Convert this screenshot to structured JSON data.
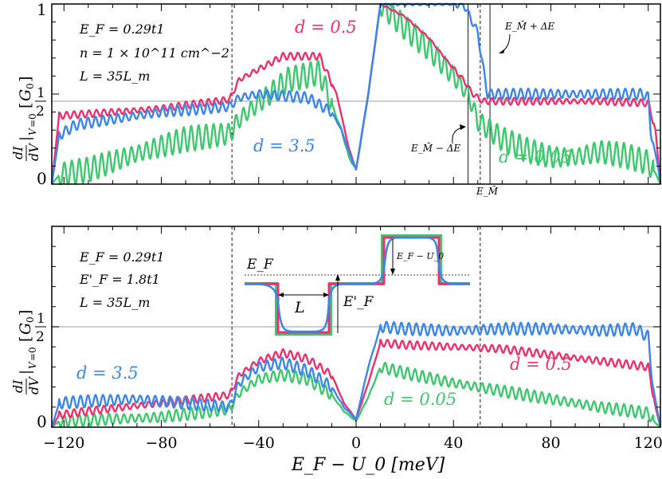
{
  "colors": {
    "d_0_5": "#f0306e",
    "d_3_5": "#3a86ea",
    "d_0_05": "#3cc86c",
    "guide": "#bdbdbd",
    "frame": "#000000"
  },
  "x_axis": {
    "label": "E_F − U_0 [meV]",
    "ticks": [
      -120,
      -80,
      -40,
      0,
      40,
      80,
      120
    ],
    "tick_labels": [
      "−120",
      "−80",
      "−40",
      "0",
      "40",
      "80",
      "120"
    ],
    "range": [
      -125,
      125
    ]
  },
  "y_axis": {
    "label": "dI/dV |V=0 [G0]",
    "tick_labels": [
      "0",
      "1/2",
      "1"
    ],
    "range": [
      0,
      1
    ]
  },
  "top_panel": {
    "params": [
      "E_F = 0.29t1",
      "n = 1 × 10^11 cm^−2",
      "L = 35L_m"
    ],
    "labels": {
      "d_0_5": "d = 0.5",
      "d_3_5": "d = 3.5",
      "d_0_05": "d = 0.05"
    },
    "annotations": {
      "e_m": "E_M̃",
      "e_m_plus": "E_M̃ + ΔE",
      "e_m_minus": "E_M̃ − ΔE"
    }
  },
  "bottom_panel": {
    "params": [
      "E_F = 0.29t1",
      "E'_F = 1.8t1",
      "L = 35L_m"
    ],
    "labels": {
      "d_0_5": "d = 0.5",
      "d_3_5": "d = 3.5",
      "d_0_05": "d = 0.05"
    },
    "inset": {
      "ef": "E_F",
      "efp": "E'_F",
      "l": "L",
      "ef_u0": "E_F − U_0"
    }
  },
  "chart_data": [
    {
      "type": "line",
      "panel": "top",
      "xlabel": "E_F − U_0 [meV]",
      "ylabel": "dI/dV |V=0 [G0]",
      "xlim": [
        -125,
        125
      ],
      "ylim": [
        0,
        1
      ],
      "vlines": [
        -51,
        46,
        51,
        55
      ],
      "series": [
        {
          "name": "d = 0.5",
          "x": [
            -125,
            -122,
            -110,
            -80,
            -52,
            -48,
            -30,
            -15,
            -8,
            -3,
            0,
            5,
            10,
            20,
            30,
            40,
            44,
            48,
            52,
            55,
            60,
            80,
            100,
            120,
            123,
            125
          ],
          "y": [
            0,
            0.38,
            0.39,
            0.42,
            0.47,
            0.58,
            0.71,
            0.71,
            0.5,
            0.2,
            0.08,
            0.5,
            1.0,
            0.93,
            0.81,
            0.64,
            0.58,
            0.5,
            0.46,
            0.46,
            0.46,
            0.46,
            0.46,
            0.45,
            0.3,
            0
          ],
          "osc": 0.02
        },
        {
          "name": "d = 3.5",
          "x": [
            -125,
            -122,
            -115,
            -100,
            -80,
            -52,
            -48,
            -40,
            -20,
            -10,
            -6,
            -3,
            0,
            5,
            10,
            30,
            44,
            46,
            50,
            52,
            54,
            56,
            60,
            80,
            100,
            118,
            120,
            121,
            124,
            125
          ],
          "y": [
            0,
            0.27,
            0.33,
            0.36,
            0.4,
            0.43,
            0.48,
            0.5,
            0.48,
            0.4,
            0.3,
            0.18,
            0.08,
            0.5,
            1.0,
            1.0,
            1.0,
            0.95,
            0.84,
            0.66,
            0.5,
            0.5,
            0.5,
            0.5,
            0.5,
            0.5,
            0.48,
            0.3,
            0.1,
            0
          ],
          "osc": 0.03
        },
        {
          "name": "d = 0.05",
          "x": [
            -125,
            -122,
            -110,
            -90,
            -70,
            -52,
            -48,
            -40,
            -28,
            -15,
            -6,
            -3,
            0,
            5,
            10,
            20,
            30,
            40,
            46,
            50,
            55,
            60,
            70,
            80,
            90,
            100,
            110,
            120,
            123,
            125
          ],
          "y": [
            0,
            0.05,
            0.08,
            0.17,
            0.25,
            0.28,
            0.36,
            0.45,
            0.58,
            0.62,
            0.3,
            0.15,
            0.08,
            0.5,
            1.0,
            0.87,
            0.75,
            0.6,
            0.5,
            0.35,
            0.3,
            0.25,
            0.19,
            0.15,
            0.15,
            0.18,
            0.16,
            0.12,
            0.06,
            0
          ],
          "osc": 0.07
        }
      ]
    },
    {
      "type": "line",
      "panel": "bottom",
      "xlabel": "E_F − U_0 [meV]",
      "ylabel": "dI/dV |V=0 [G0]",
      "xlim": [
        -125,
        125
      ],
      "ylim": [
        0,
        1
      ],
      "vlines": [
        -51,
        51
      ],
      "series": [
        {
          "name": "d = 0.5",
          "x": [
            -125,
            -122,
            -110,
            -80,
            -52,
            -48,
            -40,
            -30,
            -20,
            -10,
            -5,
            0,
            5,
            10,
            20,
            40,
            60,
            80,
            100,
            120,
            123,
            125
          ],
          "y": [
            0,
            0.06,
            0.08,
            0.12,
            0.16,
            0.26,
            0.33,
            0.37,
            0.34,
            0.26,
            0.12,
            0.04,
            0.22,
            0.42,
            0.41,
            0.4,
            0.39,
            0.36,
            0.33,
            0.3,
            0.1,
            0
          ],
          "osc": 0.02
        },
        {
          "name": "d = 3.5",
          "x": [
            -125,
            -122,
            -110,
            -90,
            -70,
            -52,
            -48,
            -40,
            -30,
            -20,
            -10,
            -5,
            0,
            5,
            10,
            20,
            40,
            60,
            80,
            100,
            115,
            120,
            122,
            125
          ],
          "y": [
            0,
            0.12,
            0.13,
            0.14,
            0.12,
            0.1,
            0.22,
            0.3,
            0.32,
            0.28,
            0.2,
            0.1,
            0.04,
            0.3,
            0.5,
            0.49,
            0.48,
            0.49,
            0.49,
            0.48,
            0.49,
            0.45,
            0.2,
            0
          ],
          "osc": 0.03
        },
        {
          "name": "d = 0.05",
          "x": [
            -125,
            -122,
            -100,
            -80,
            -52,
            -48,
            -40,
            -30,
            -20,
            -10,
            -5,
            0,
            5,
            10,
            20,
            40,
            60,
            80,
            100,
            120,
            123,
            125
          ],
          "y": [
            0,
            0.03,
            0.04,
            0.05,
            0.09,
            0.17,
            0.24,
            0.26,
            0.24,
            0.16,
            0.08,
            0.03,
            0.15,
            0.3,
            0.27,
            0.22,
            0.18,
            0.14,
            0.1,
            0.07,
            0.02,
            0
          ],
          "osc": 0.03
        }
      ]
    }
  ]
}
